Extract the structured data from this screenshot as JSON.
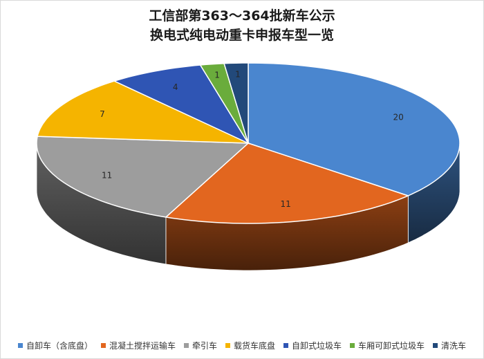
{
  "chart_data": {
    "type": "pie",
    "title_line1": "工信部第363～364批新车公示",
    "title_line2": "换电式纯电动重卡申报车型一览",
    "categories": [
      "自卸车（含底盘）",
      "混凝土搅拌运输车",
      "牵引车",
      "载货车底盘",
      "自卸式垃圾车",
      "车厢可卸式垃圾车",
      "清洗车"
    ],
    "values": [
      20,
      11,
      11,
      7,
      4,
      1,
      1
    ],
    "labels": [
      "20",
      "11",
      "11",
      "7",
      "4",
      "1",
      "1"
    ],
    "colors": [
      "#4a86cf",
      "#e2661f",
      "#9d9d9d",
      "#f5b400",
      "#2f55b4",
      "#6aac3c",
      "#22497a"
    ],
    "style": "3d",
    "legend_position": "bottom"
  }
}
